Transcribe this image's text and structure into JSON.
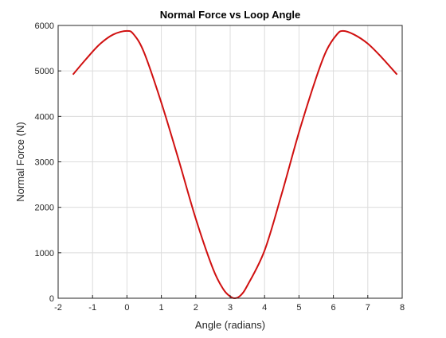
{
  "chart_data": {
    "type": "line",
    "title": "Normal Force vs Loop Angle",
    "xlabel": "Angle (radians)",
    "ylabel": "Normal Force (N)",
    "xlim": [
      -2,
      8
    ],
    "ylim": [
      0,
      6000
    ],
    "xticks": [
      "-2",
      "-1",
      "0",
      "1",
      "2",
      "3",
      "4",
      "5",
      "6",
      "7",
      "8"
    ],
    "yticks": [
      "0",
      "1000",
      "2000",
      "3000",
      "4000",
      "5000",
      "6000"
    ],
    "grid": true,
    "series": [
      {
        "color": "#d01010",
        "x": [
          -1.57,
          -1.2,
          -0.8,
          -0.4,
          0.0,
          0.2,
          0.5,
          1.0,
          1.5,
          2.0,
          2.5,
          2.8,
          3.0,
          3.14,
          3.3,
          3.5,
          4.0,
          4.5,
          5.0,
          5.5,
          5.8,
          6.1,
          6.28,
          6.6,
          7.0,
          7.4,
          7.85
        ],
        "y": [
          4920,
          5250,
          5580,
          5800,
          5880,
          5800,
          5400,
          4300,
          3050,
          1750,
          650,
          200,
          40,
          0,
          60,
          280,
          1050,
          2300,
          3650,
          4850,
          5450,
          5800,
          5880,
          5800,
          5600,
          5300,
          4920
        ]
      }
    ]
  }
}
